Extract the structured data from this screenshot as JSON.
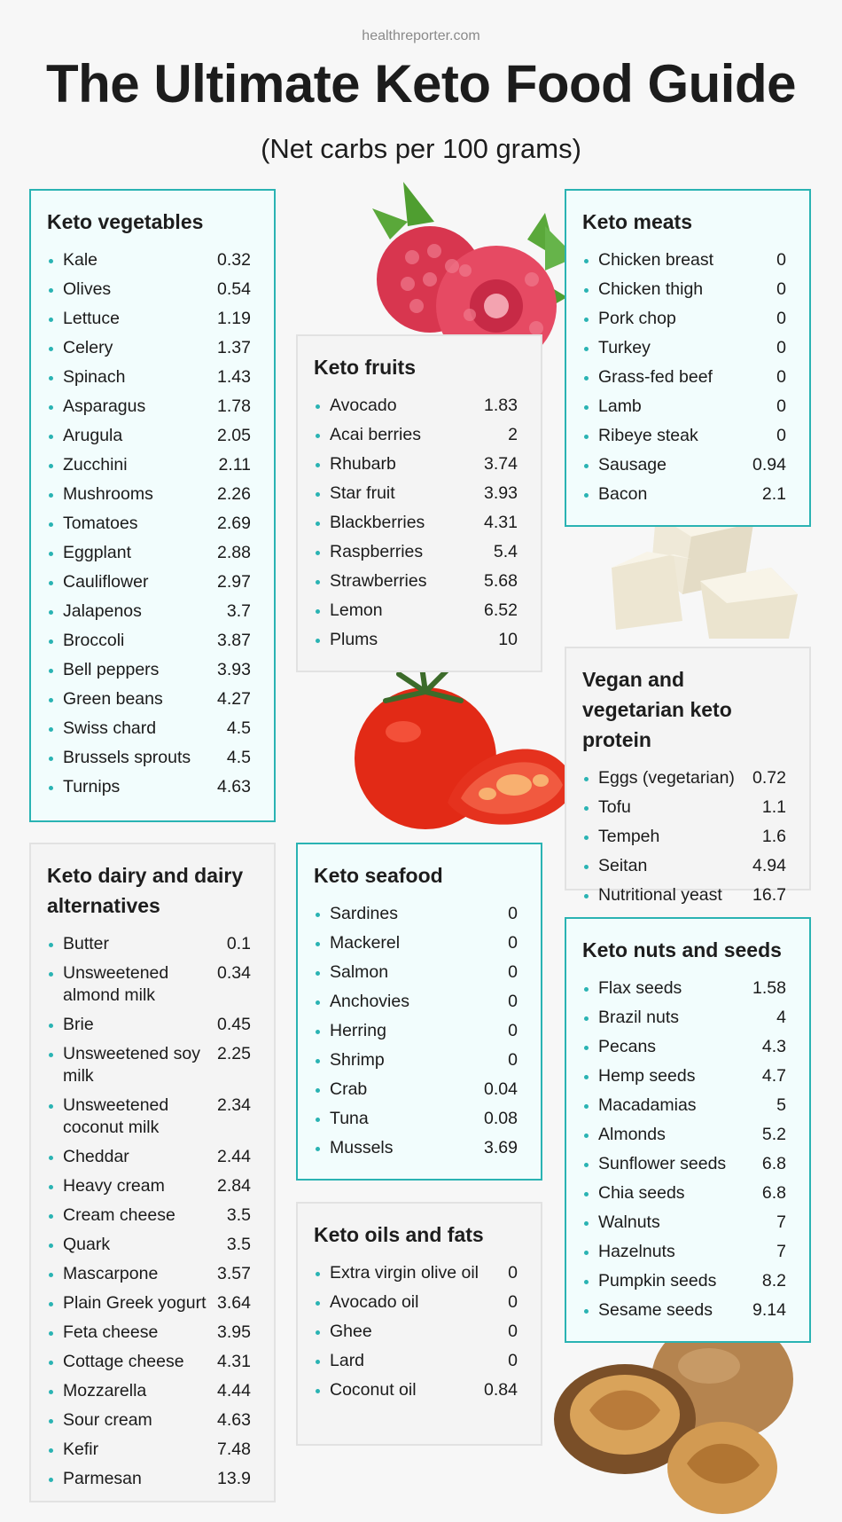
{
  "source": "healthreporter.com",
  "title": "The Ultimate Keto Food Guide",
  "subtitle": "(Net carbs per 100 grams)",
  "colors": {
    "accent": "#2ab3b3",
    "teal_card_bg": "#f2fdfd",
    "grey_card_bg": "#f4f4f4"
  },
  "vegetables": {
    "title": "Keto vegetables",
    "items": [
      {
        "name": "Kale",
        "value": "0.32"
      },
      {
        "name": "Olives",
        "value": "0.54"
      },
      {
        "name": "Lettuce",
        "value": "1.19"
      },
      {
        "name": "Celery",
        "value": "1.37"
      },
      {
        "name": "Spinach",
        "value": "1.43"
      },
      {
        "name": "Asparagus",
        "value": "1.78"
      },
      {
        "name": "Arugula",
        "value": "2.05"
      },
      {
        "name": "Zucchini",
        "value": "2.11"
      },
      {
        "name": "Mushrooms",
        "value": "2.26"
      },
      {
        "name": "Tomatoes",
        "value": "2.69"
      },
      {
        "name": "Eggplant",
        "value": "2.88"
      },
      {
        "name": "Cauliflower",
        "value": "2.97"
      },
      {
        "name": "Jalapenos",
        "value": "3.7"
      },
      {
        "name": "Broccoli",
        "value": "3.87"
      },
      {
        "name": "Bell peppers",
        "value": "3.93"
      },
      {
        "name": "Green beans",
        "value": "4.27"
      },
      {
        "name": "Swiss chard",
        "value": "4.5"
      },
      {
        "name": "Brussels sprouts",
        "value": "4.5"
      },
      {
        "name": "Turnips",
        "value": "4.63"
      }
    ]
  },
  "fruits": {
    "title": "Keto fruits",
    "items": [
      {
        "name": "Avocado",
        "value": "1.83"
      },
      {
        "name": "Acai berries",
        "value": "2"
      },
      {
        "name": "Rhubarb",
        "value": "3.74"
      },
      {
        "name": "Star fruit",
        "value": "3.93"
      },
      {
        "name": "Blackberries",
        "value": "4.31"
      },
      {
        "name": "Raspberries",
        "value": "5.4"
      },
      {
        "name": "Strawberries",
        "value": "5.68"
      },
      {
        "name": "Lemon",
        "value": "6.52"
      },
      {
        "name": "Plums",
        "value": "10"
      }
    ]
  },
  "meats": {
    "title": "Keto meats",
    "items": [
      {
        "name": "Chicken breast",
        "value": "0"
      },
      {
        "name": "Chicken thigh",
        "value": "0"
      },
      {
        "name": "Pork chop",
        "value": "0"
      },
      {
        "name": "Turkey",
        "value": "0"
      },
      {
        "name": "Grass-fed beef",
        "value": "0"
      },
      {
        "name": "Lamb",
        "value": "0"
      },
      {
        "name": "Ribeye steak",
        "value": "0"
      },
      {
        "name": "Sausage",
        "value": "0.94"
      },
      {
        "name": "Bacon",
        "value": "2.1"
      }
    ]
  },
  "vegan": {
    "title": "Vegan and vegetarian keto protein",
    "items": [
      {
        "name": "Eggs (vegetarian)",
        "value": "0.72"
      },
      {
        "name": "Tofu",
        "value": "1.1"
      },
      {
        "name": "Tempeh",
        "value": "1.6"
      },
      {
        "name": "Seitan",
        "value": "4.94"
      },
      {
        "name": "Nutritional yeast",
        "value": "16.7"
      }
    ]
  },
  "dairy": {
    "title": "Keto dairy and dairy alternatives",
    "items": [
      {
        "name": "Butter",
        "value": "0.1"
      },
      {
        "name": "Unsweetened almond milk",
        "value": "0.34"
      },
      {
        "name": "Brie",
        "value": "0.45"
      },
      {
        "name": "Unsweetened soy milk",
        "value": "2.25"
      },
      {
        "name": "Unsweetened coconut milk",
        "value": "2.34"
      },
      {
        "name": "Cheddar",
        "value": "2.44"
      },
      {
        "name": "Heavy cream",
        "value": "2.84"
      },
      {
        "name": "Cream cheese",
        "value": "3.5"
      },
      {
        "name": "Quark",
        "value": "3.5"
      },
      {
        "name": "Mascarpone",
        "value": "3.57"
      },
      {
        "name": "Plain Greek yogurt",
        "value": "3.64"
      },
      {
        "name": "Feta cheese",
        "value": "3.95"
      },
      {
        "name": "Cottage cheese",
        "value": "4.31"
      },
      {
        "name": "Mozzarella",
        "value": "4.44"
      },
      {
        "name": "Sour cream",
        "value": "4.63"
      },
      {
        "name": "Kefir",
        "value": "7.48"
      },
      {
        "name": "Parmesan",
        "value": "13.9"
      }
    ]
  },
  "seafood": {
    "title": "Keto seafood",
    "items": [
      {
        "name": "Sardines",
        "value": "0"
      },
      {
        "name": "Mackerel",
        "value": "0"
      },
      {
        "name": "Salmon",
        "value": "0"
      },
      {
        "name": "Anchovies",
        "value": "0"
      },
      {
        "name": "Herring",
        "value": "0"
      },
      {
        "name": "Shrimp",
        "value": "0"
      },
      {
        "name": "Crab",
        "value": "0.04"
      },
      {
        "name": "Tuna",
        "value": "0.08"
      },
      {
        "name": "Mussels",
        "value": "3.69"
      }
    ]
  },
  "oils": {
    "title": "Keto oils and fats",
    "items": [
      {
        "name": "Extra virgin olive oil",
        "value": "0"
      },
      {
        "name": "Avocado oil",
        "value": "0"
      },
      {
        "name": "Ghee",
        "value": "0"
      },
      {
        "name": "Lard",
        "value": "0"
      },
      {
        "name": "Coconut oil",
        "value": "0.84"
      }
    ]
  },
  "nuts": {
    "title": "Keto nuts and seeds",
    "items": [
      {
        "name": "Flax seeds",
        "value": "1.58"
      },
      {
        "name": "Brazil nuts",
        "value": "4"
      },
      {
        "name": "Pecans",
        "value": "4.3"
      },
      {
        "name": "Hemp seeds",
        "value": "4.7"
      },
      {
        "name": "Macadamias",
        "value": "5"
      },
      {
        "name": "Almonds",
        "value": "5.2"
      },
      {
        "name": "Sunflower seeds",
        "value": "6.8"
      },
      {
        "name": "Chia seeds",
        "value": "6.8"
      },
      {
        "name": "Walnuts",
        "value": "7"
      },
      {
        "name": "Hazelnuts",
        "value": "7"
      },
      {
        "name": "Pumpkin seeds",
        "value": "8.2"
      },
      {
        "name": "Sesame seeds",
        "value": "9.14"
      }
    ]
  },
  "illustrations": [
    "raspberry-illustration",
    "tofu-illustration",
    "tomato-illustration",
    "walnut-illustration"
  ]
}
